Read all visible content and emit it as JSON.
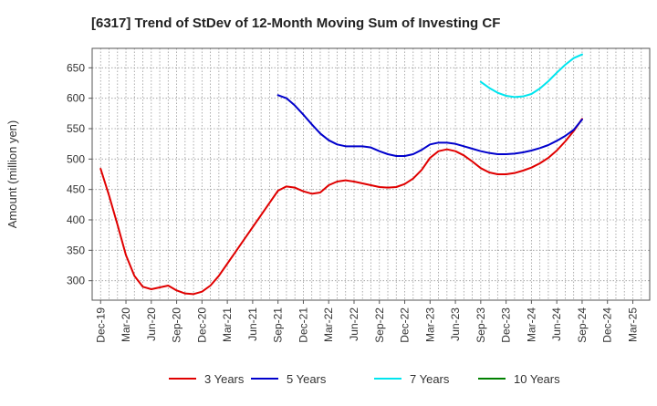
{
  "chart_data": {
    "type": "line",
    "title": "[6317]  Trend of StDev of 12-Month Moving Sum of Investing CF",
    "xlabel": "",
    "ylabel": "Amount (million yen)",
    "ylim": [
      268,
      682
    ],
    "yticks": [
      300,
      350,
      400,
      450,
      500,
      550,
      600,
      650
    ],
    "x_tick_labels": [
      "Dec-19",
      "Mar-20",
      "Jun-20",
      "Sep-20",
      "Dec-20",
      "Mar-21",
      "Jun-21",
      "Sep-21",
      "Dec-21",
      "Mar-22",
      "Jun-22",
      "Sep-22",
      "Dec-22",
      "Mar-23",
      "Jun-23",
      "Sep-23",
      "Dec-23",
      "Mar-24",
      "Jun-24",
      "Sep-24",
      "Dec-24",
      "Mar-25"
    ],
    "grid": true,
    "legend_position": "bottom",
    "series": [
      {
        "name": "3 Years",
        "color": "#e00000",
        "x": [
          "Dec-19",
          "Jan-20",
          "Feb-20",
          "Mar-20",
          "Apr-20",
          "May-20",
          "Jun-20",
          "Jul-20",
          "Aug-20",
          "Sep-20",
          "Oct-20",
          "Nov-20",
          "Dec-20",
          "Jan-21",
          "Feb-21",
          "Mar-21",
          "Apr-21",
          "May-21",
          "Jun-21",
          "Jul-21",
          "Aug-21",
          "Sep-21",
          "Oct-21",
          "Nov-21",
          "Dec-21",
          "Jan-22",
          "Feb-22",
          "Mar-22",
          "Apr-22",
          "May-22",
          "Jun-22",
          "Jul-22",
          "Aug-22",
          "Sep-22",
          "Oct-22",
          "Nov-22",
          "Dec-22",
          "Jan-23",
          "Feb-23",
          "Mar-23",
          "Apr-23",
          "May-23",
          "Jun-23",
          "Jul-23",
          "Aug-23",
          "Sep-23",
          "Oct-23",
          "Nov-23",
          "Dec-23",
          "Jan-24",
          "Feb-24",
          "Mar-24",
          "Apr-24",
          "May-24",
          "Jun-24",
          "Jul-24",
          "Aug-24",
          "Sep-24"
        ],
        "values": [
          484,
          440,
          392,
          342,
          308,
          290,
          286,
          289,
          292,
          284,
          279,
          278,
          282,
          292,
          308,
          328,
          348,
          368,
          388,
          408,
          428,
          448,
          455,
          453,
          447,
          443,
          445,
          457,
          463,
          465,
          463,
          460,
          457,
          454,
          453,
          454,
          459,
          468,
          482,
          502,
          513,
          516,
          513,
          506,
          496,
          485,
          478,
          475,
          475,
          477,
          481,
          486,
          493,
          502,
          514,
          529,
          546,
          566
        ]
      },
      {
        "name": "5 Years",
        "color": "#0000cc",
        "x": [
          "Sep-21",
          "Oct-21",
          "Nov-21",
          "Dec-21",
          "Jan-22",
          "Feb-22",
          "Mar-22",
          "Apr-22",
          "May-22",
          "Jun-22",
          "Jul-22",
          "Aug-22",
          "Sep-22",
          "Oct-22",
          "Nov-22",
          "Dec-22",
          "Jan-23",
          "Feb-23",
          "Mar-23",
          "Apr-23",
          "May-23",
          "Jun-23",
          "Jul-23",
          "Aug-23",
          "Sep-23",
          "Oct-23",
          "Nov-23",
          "Dec-23",
          "Jan-24",
          "Feb-24",
          "Mar-24",
          "Apr-24",
          "May-24",
          "Jun-24",
          "Jul-24",
          "Aug-24",
          "Sep-24"
        ],
        "values": [
          605,
          600,
          588,
          573,
          557,
          542,
          531,
          524,
          521,
          521,
          521,
          519,
          513,
          508,
          505,
          505,
          508,
          515,
          524,
          527,
          527,
          525,
          521,
          517,
          513,
          510,
          508,
          508,
          509,
          511,
          514,
          518,
          523,
          530,
          538,
          548,
          565
        ]
      },
      {
        "name": "7 Years",
        "color": "#00e5ee",
        "x": [
          "Sep-23",
          "Oct-23",
          "Nov-23",
          "Dec-23",
          "Jan-24",
          "Feb-24",
          "Mar-24",
          "Apr-24",
          "May-24",
          "Jun-24",
          "Jul-24",
          "Aug-24",
          "Sep-24"
        ],
        "values": [
          627,
          617,
          609,
          604,
          602,
          603,
          607,
          616,
          628,
          642,
          655,
          666,
          672
        ]
      },
      {
        "name": "10 Years",
        "color": "#008000",
        "x": [],
        "values": []
      }
    ]
  }
}
